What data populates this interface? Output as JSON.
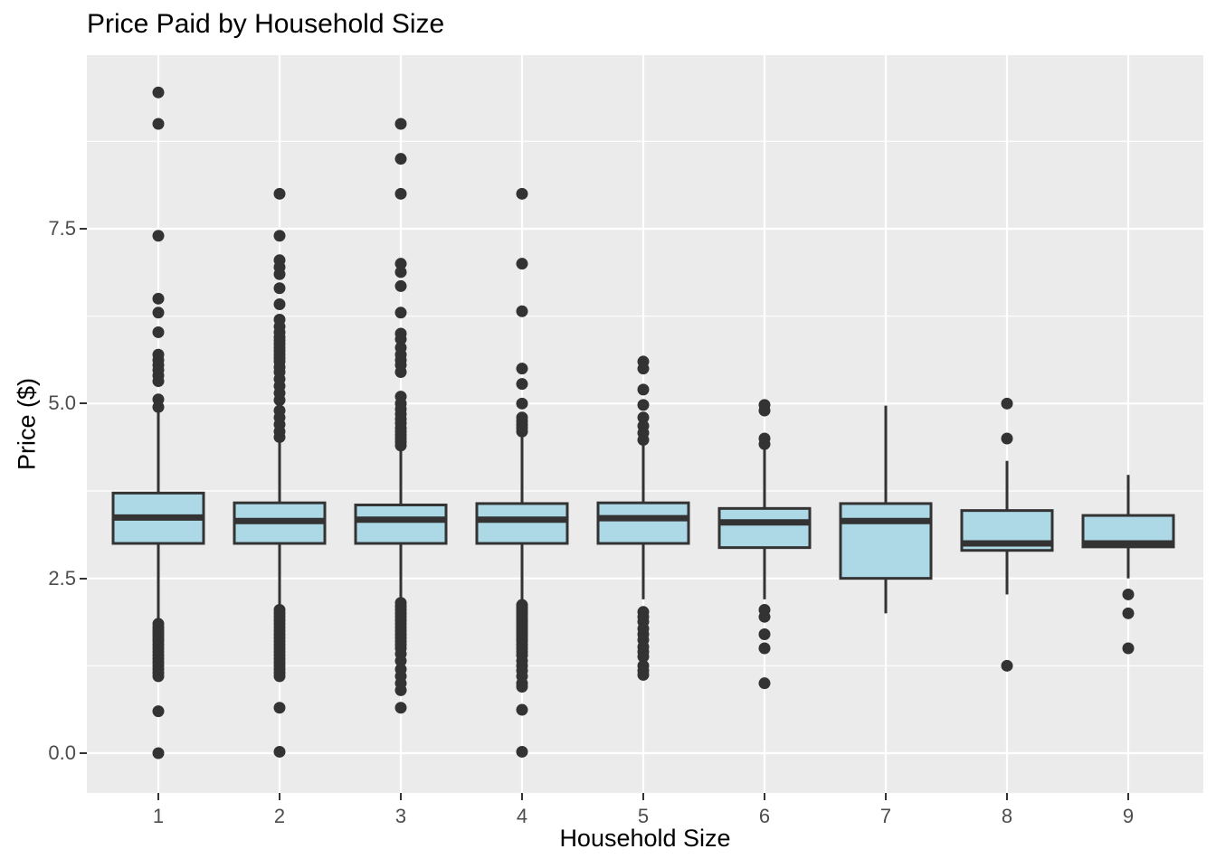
{
  "title": "Price Paid by Household Size",
  "x_axis": {
    "title": "Household Size",
    "ticks": [
      "1",
      "2",
      "3",
      "4",
      "5",
      "6",
      "7",
      "8",
      "9"
    ]
  },
  "y_axis": {
    "title": "Price ($)",
    "ticks": [
      {
        "label": "0.0",
        "value": 0.0
      },
      {
        "label": "2.5",
        "value": 2.5
      },
      {
        "label": "5.0",
        "value": 5.0
      },
      {
        "label": "7.5",
        "value": 7.5
      }
    ]
  },
  "colors": {
    "panel_bg": "#EBEBEB",
    "gridline": "#FFFFFF",
    "box_fill": "#ADD8E6",
    "box_stroke": "#333333",
    "outlier": "#333333",
    "tick_text": "#4D4D4D",
    "title_text": "#000000"
  },
  "chart_data": {
    "type": "boxplot",
    "title": "Price Paid by Household Size",
    "xlabel": "Household Size",
    "ylabel": "Price ($)",
    "ylim": [
      -0.6,
      10.0
    ],
    "y_major_gridlines": [
      0.0,
      2.5,
      5.0,
      7.5
    ],
    "y_minor_gridlines": [
      1.25,
      3.75,
      6.25,
      8.75
    ],
    "grid": "on",
    "categories": [
      "1",
      "2",
      "3",
      "4",
      "5",
      "6",
      "7",
      "8",
      "9"
    ],
    "series": [
      {
        "household_size": "1",
        "q1": 3.0,
        "median": 3.37,
        "q3": 3.72,
        "whisker_low": 1.9,
        "whisker_high": 4.88,
        "outliers_high": [
          9.45,
          9.0,
          7.4,
          6.5,
          6.3,
          6.02,
          5.7,
          5.62,
          5.55,
          5.48,
          5.4,
          5.32,
          5.06,
          4.95
        ],
        "outliers_low": [
          1.85,
          1.8,
          1.76,
          1.72,
          1.68,
          1.64,
          1.6,
          1.55,
          1.5,
          1.45,
          1.4,
          1.35,
          1.3,
          1.25,
          1.2,
          1.15,
          1.1,
          0.6,
          0.0
        ]
      },
      {
        "household_size": "2",
        "q1": 3.0,
        "median": 3.32,
        "q3": 3.58,
        "whisker_low": 2.1,
        "whisker_high": 4.45,
        "outliers_high": [
          8.0,
          7.4,
          7.05,
          6.95,
          6.85,
          6.65,
          6.42,
          6.2,
          6.1,
          6.02,
          5.95,
          5.9,
          5.85,
          5.8,
          5.75,
          5.7,
          5.65,
          5.6,
          5.52,
          5.45,
          5.35,
          5.25,
          5.15,
          5.05,
          4.9,
          4.8,
          4.7,
          4.6,
          4.52
        ],
        "outliers_low": [
          2.05,
          2.0,
          1.95,
          1.9,
          1.85,
          1.8,
          1.75,
          1.7,
          1.65,
          1.6,
          1.55,
          1.5,
          1.45,
          1.4,
          1.35,
          1.3,
          1.25,
          1.2,
          1.15,
          1.1,
          0.65,
          0.02
        ]
      },
      {
        "household_size": "3",
        "q1": 3.0,
        "median": 3.34,
        "q3": 3.55,
        "whisker_low": 2.2,
        "whisker_high": 4.35,
        "outliers_high": [
          9.0,
          8.5,
          8.0,
          7.0,
          6.88,
          6.68,
          6.3,
          6.0,
          5.92,
          5.8,
          5.7,
          5.62,
          5.55,
          5.45,
          5.1,
          5.0,
          4.92,
          4.85,
          4.78,
          4.72,
          4.65,
          4.6,
          4.55,
          4.5,
          4.45,
          4.4
        ],
        "outliers_low": [
          2.15,
          2.1,
          2.05,
          2.0,
          1.95,
          1.9,
          1.85,
          1.8,
          1.75,
          1.7,
          1.65,
          1.6,
          1.55,
          1.5,
          1.42,
          1.32,
          1.2,
          1.1,
          1.0,
          0.9,
          0.65
        ]
      },
      {
        "household_size": "4",
        "q1": 3.0,
        "median": 3.34,
        "q3": 3.57,
        "whisker_low": 2.18,
        "whisker_high": 4.52,
        "outliers_high": [
          8.0,
          7.0,
          6.32,
          5.5,
          5.28,
          5.0,
          4.8,
          4.75,
          4.7,
          4.65,
          4.6
        ],
        "outliers_low": [
          2.12,
          2.08,
          2.04,
          2.0,
          1.96,
          1.92,
          1.88,
          1.84,
          1.8,
          1.76,
          1.72,
          1.68,
          1.64,
          1.6,
          1.55,
          1.5,
          1.45,
          1.4,
          1.32,
          1.25,
          1.18,
          1.1,
          1.0,
          0.95,
          0.62,
          0.02
        ]
      },
      {
        "household_size": "5",
        "q1": 3.0,
        "median": 3.36,
        "q3": 3.58,
        "whisker_low": 2.2,
        "whisker_high": 4.43,
        "outliers_high": [
          5.6,
          5.5,
          5.2,
          4.98,
          4.8,
          4.68,
          4.58,
          4.48
        ],
        "outliers_low": [
          2.02,
          1.95,
          1.88,
          1.78,
          1.7,
          1.62,
          1.52,
          1.45,
          1.38,
          1.25,
          1.18,
          1.12
        ]
      },
      {
        "household_size": "6",
        "q1": 2.94,
        "median": 3.3,
        "q3": 3.5,
        "whisker_low": 2.2,
        "whisker_high": 4.35,
        "outliers_high": [
          4.98,
          4.9,
          4.5,
          4.42
        ],
        "outliers_low": [
          2.05,
          1.95,
          1.7,
          1.5,
          1.0
        ]
      },
      {
        "household_size": "7",
        "q1": 2.5,
        "median": 3.32,
        "q3": 3.57,
        "whisker_low": 2.0,
        "whisker_high": 4.97,
        "outliers_high": [],
        "outliers_low": []
      },
      {
        "household_size": "8",
        "q1": 2.9,
        "median": 3.0,
        "q3": 3.47,
        "whisker_low": 2.27,
        "whisker_high": 4.18,
        "outliers_high": [
          5.0,
          4.5
        ],
        "outliers_low": [
          1.25
        ]
      },
      {
        "household_size": "9",
        "q1": 2.95,
        "median": 3.0,
        "q3": 3.4,
        "whisker_low": 2.5,
        "whisker_high": 3.98,
        "outliers_high": [],
        "outliers_low": [
          2.27,
          2.0,
          1.5
        ]
      }
    ]
  }
}
